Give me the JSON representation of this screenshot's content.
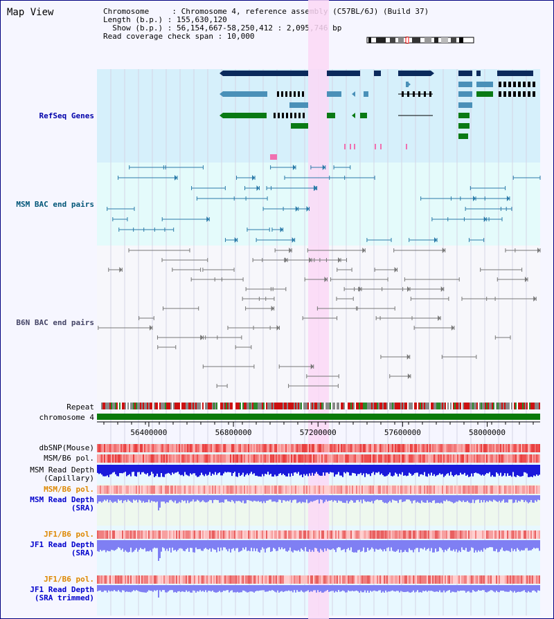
{
  "title": "Map View",
  "info": {
    "chromosome_line": "Chromosome     : Chromosome 4, reference assembly (C57BL/6J) (Build 37)",
    "length_line": "Length (b.p.) : 155,630,120",
    "show_line": "  Show (b.p.) : 56,154,667-58,250,412 : 2,095,746 bp",
    "coverage_line": "Read coverage check span : 10,000"
  },
  "tracks": {
    "refseq": "RefSeq Genes",
    "msm_bac": "MSM BAC end pairs",
    "b6n_bac": "B6N BAC end pairs",
    "repeat": "Repeat",
    "chromosome": "chromosome 4",
    "dbsnp": "dbSNP(Mouse)",
    "msm_b6_pol": "MSM/B6 pol.",
    "msm_read_depth_cap": "MSM Read Depth\n(Capillary)",
    "msm_b6_pol2": "MSM/B6 pol.",
    "msm_read_depth_sra": "MSM Read Depth\n(SRA)",
    "jf1_b6_pol": "JF1/B6 pol.",
    "jf1_read_depth_sra": "JF1 Read Depth\n(SRA)",
    "jf1_b6_pol2": "JF1/B6 pol.",
    "jf1_read_depth_trim": "JF1 Read Depth\n(SRA trimmed)"
  },
  "axis_ticks": [
    "56400000",
    "56800000",
    "57200000",
    "57600000",
    "58000000"
  ],
  "colors": {
    "frame": "#000080",
    "refseq_bg": "#d6f0fb",
    "msm_bac_bg": "#e4fbfb",
    "b6n_bg": "#f7f7fb",
    "highlight": "#fbd8f6",
    "gene_dark": "#0b2a5c",
    "gene_mid": "#4a90b8",
    "gene_green": "#0a7a14",
    "msm_bac_line": "#2a7aa8",
    "b6n_line": "#777777",
    "chrom_green": "#0a7a0a",
    "read_depth_blue": "#1a1adb",
    "read_depth_light": "#7f7ff3",
    "label_blue": "#0000cc",
    "label_orange": "#dd8800",
    "label_teal": "#006688"
  }
}
